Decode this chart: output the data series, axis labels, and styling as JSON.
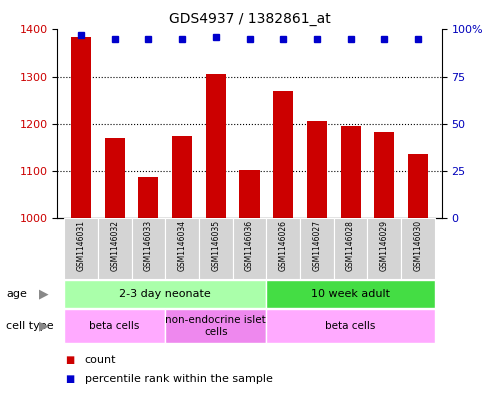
{
  "title": "GDS4937 / 1382861_at",
  "samples": [
    "GSM1146031",
    "GSM1146032",
    "GSM1146033",
    "GSM1146034",
    "GSM1146035",
    "GSM1146036",
    "GSM1146026",
    "GSM1146027",
    "GSM1146028",
    "GSM1146029",
    "GSM1146030"
  ],
  "counts": [
    1385,
    1170,
    1087,
    1175,
    1305,
    1102,
    1270,
    1205,
    1195,
    1183,
    1135
  ],
  "percentiles": [
    97,
    95,
    95,
    95,
    96,
    95,
    95,
    95,
    95,
    95,
    95
  ],
  "ylim_left": [
    1000,
    1400
  ],
  "ylim_right": [
    0,
    100
  ],
  "yticks_left": [
    1000,
    1100,
    1200,
    1300,
    1400
  ],
  "yticks_right": [
    0,
    25,
    50,
    75,
    100
  ],
  "bar_color": "#cc0000",
  "dot_color": "#0000cc",
  "age_groups": [
    {
      "label": "2-3 day neonate",
      "start": 0,
      "end": 6,
      "color": "#aaffaa"
    },
    {
      "label": "10 week adult",
      "start": 6,
      "end": 11,
      "color": "#44dd44"
    }
  ],
  "cell_type_groups": [
    {
      "label": "beta cells",
      "start": 0,
      "end": 3,
      "color": "#ffaaff"
    },
    {
      "label": "non-endocrine islet\ncells",
      "start": 3,
      "end": 6,
      "color": "#ee88ee"
    },
    {
      "label": "beta cells",
      "start": 6,
      "end": 11,
      "color": "#ffaaff"
    }
  ],
  "legend_items": [
    {
      "color": "#cc0000",
      "label": "count"
    },
    {
      "color": "#0000cc",
      "label": "percentile rank within the sample"
    }
  ],
  "background_color": "#ffffff",
  "label_color_left": "#cc0000",
  "label_color_right": "#0000bb",
  "sample_label_bg": "#d4d4d4",
  "arrow_color": "#888888"
}
